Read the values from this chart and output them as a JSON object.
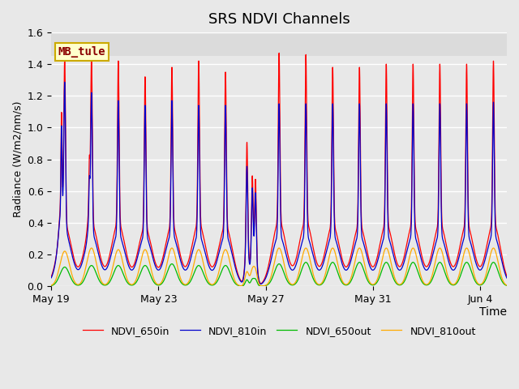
{
  "title": "SRS NDVI Channels",
  "xlabel": "Time",
  "ylabel": "Radiance (W/m2/nm/s)",
  "annotation": "MB_tule",
  "ylim": [
    0,
    1.6
  ],
  "colors": {
    "NDVI_650in": "#ff0000",
    "NDVI_810in": "#0000cc",
    "NDVI_650out": "#00bb00",
    "NDVI_810out": "#ffaa00"
  },
  "legend_labels": [
    "NDVI_650in",
    "NDVI_810in",
    "NDVI_650out",
    "NDVI_810out"
  ],
  "xtick_labels": [
    "May 19",
    "May 23",
    "May 27",
    "May 31",
    "Jun 4"
  ],
  "xtick_positions": [
    0,
    4,
    8,
    12,
    16
  ],
  "bg_color": "#e8e8e8",
  "bg_upper": "#d8d8d8",
  "fig_color": "#e8e8e8",
  "n_days": 17,
  "peaks_650in": [
    1.37,
    1.4,
    1.42,
    1.32,
    1.38,
    1.42,
    1.35,
    0.9,
    1.47,
    1.46,
    1.38,
    1.38,
    1.4,
    1.4,
    1.4,
    1.4,
    1.42
  ],
  "peaks_810in": [
    1.19,
    1.18,
    1.17,
    1.14,
    1.17,
    1.14,
    1.14,
    1.15,
    1.15,
    1.15,
    1.15,
    1.15,
    1.15,
    1.15,
    1.15,
    1.15,
    1.16
  ],
  "peaks_650out": [
    0.12,
    0.13,
    0.13,
    0.13,
    0.14,
    0.13,
    0.13,
    0.08,
    0.14,
    0.15,
    0.15,
    0.15,
    0.15,
    0.15,
    0.15,
    0.15,
    0.15
  ],
  "peaks_810out": [
    0.22,
    0.24,
    0.23,
    0.23,
    0.24,
    0.23,
    0.23,
    0.18,
    0.24,
    0.24,
    0.24,
    0.24,
    0.24,
    0.24,
    0.24,
    0.24,
    0.24
  ]
}
